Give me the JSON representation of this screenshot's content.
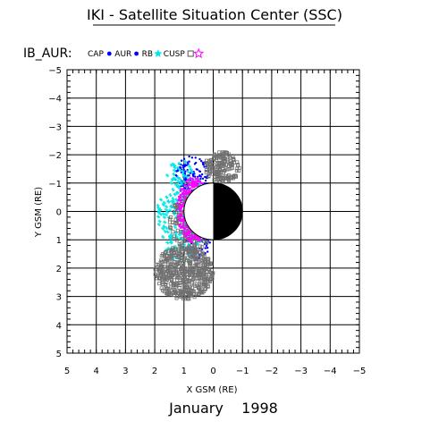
{
  "chart_data": {
    "type": "scatter",
    "title": "IKI - Satellite Situation Center (SSC)",
    "subtitle": "IB_AUR:",
    "footer": "January    1998",
    "xlabel": "X GSM (RE)",
    "ylabel": "Y GSM (RE)",
    "xlim": [
      5,
      -5
    ],
    "ylim": [
      -5,
      5
    ],
    "x_ticks": [
      5,
      4,
      3,
      2,
      1,
      0,
      -1,
      -2,
      -3,
      -4,
      -5
    ],
    "x_tick_labels": [
      "5",
      "4",
      "3",
      "2",
      "1",
      "0",
      "−1",
      "−2",
      "−3",
      "−4",
      "−5"
    ],
    "y_ticks": [
      -5,
      -4,
      -3,
      -2,
      -1,
      0,
      1,
      2,
      3,
      4,
      5
    ],
    "y_tick_labels": [
      "−5",
      "−4",
      "−3",
      "−2",
      "−1",
      "0",
      "1",
      "2",
      "3",
      "4",
      "5"
    ],
    "grid": true,
    "legend_placement": "top-left",
    "earth": {
      "center": [
        0,
        0
      ],
      "radius": 1,
      "night_side": "negative-x"
    },
    "series": [
      {
        "name": "CAP",
        "marker": "dot",
        "color": "#0000ff",
        "regions": [
          {
            "x": [
              0.15,
              1.3
            ],
            "y": [
              -1.95,
              -0.55
            ],
            "density": 140
          }
        ]
      },
      {
        "name": "AUR",
        "marker": "dot",
        "color": "#0000ff",
        "regions": [
          {
            "x": [
              0.1,
              1.0
            ],
            "y": [
              0.5,
              1.7
            ],
            "density": 60
          }
        ]
      },
      {
        "name": "RB",
        "marker": "star",
        "color": "#00e5e5",
        "regions": [
          {
            "x": [
              0.3,
              1.9
            ],
            "y": [
              -1.8,
              1.8
            ],
            "density": 220
          }
        ]
      },
      {
        "name": "CUSP",
        "marker": "square",
        "color": "#707070",
        "regions": [
          {
            "x": [
              0.0,
              2.0
            ],
            "y": [
              1.2,
              3.1
            ],
            "density": 520
          },
          {
            "x": [
              -0.9,
              0.3
            ],
            "y": [
              -2.1,
              -1.0
            ],
            "density": 180
          },
          {
            "x": [
              0.0,
              1.5
            ],
            "y": [
              -0.6,
              1.4
            ],
            "density": 160
          }
        ]
      },
      {
        "name": "",
        "marker": "dot",
        "color": "#ff00ff",
        "regions": [
          {
            "x": [
              0.05,
              1.25
            ],
            "y": [
              -1.2,
              1.1
            ],
            "density": 520
          }
        ]
      }
    ],
    "legend": [
      {
        "label": "CAP",
        "symbol": "dot",
        "color": "#0000ff"
      },
      {
        "label": "AUR",
        "symbol": "dot",
        "color": "#0000ff"
      },
      {
        "label": "RB",
        "symbol": "star",
        "color": "#00e5e5"
      },
      {
        "label": "CUSP",
        "symbol": "square",
        "color": "#555555"
      },
      {
        "label": "",
        "symbol": "star",
        "color": "#ff00ff"
      }
    ]
  }
}
